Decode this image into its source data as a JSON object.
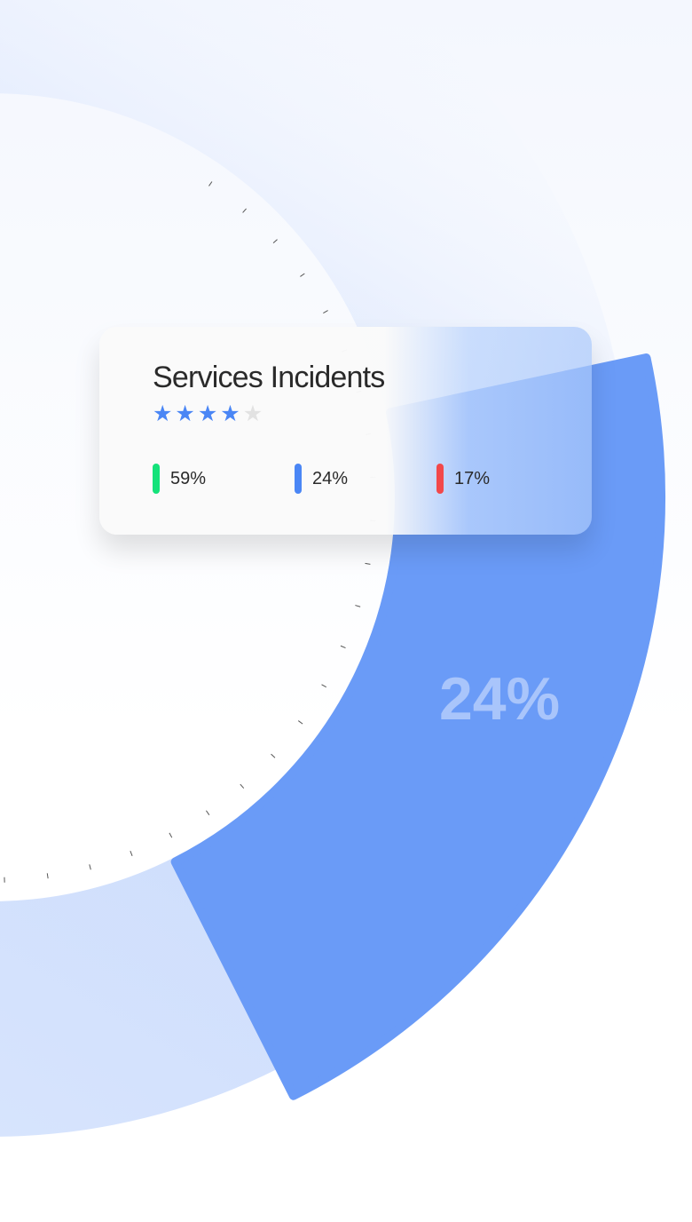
{
  "chart_data": {
    "type": "pie",
    "title": "Services Incidents",
    "values": [
      59,
      24,
      17
    ],
    "colors": [
      "#14e27a",
      "#4a86f5",
      "#f2484a"
    ],
    "highlighted_value": 24,
    "highlight_label": "24%",
    "donut": true
  },
  "card": {
    "title": "Services Incidents",
    "rating": 4,
    "rating_max": 5,
    "legend": [
      {
        "label": "59%",
        "color": "#14e27a"
      },
      {
        "label": "24%",
        "color": "#4a86f5"
      },
      {
        "label": "17%",
        "color": "#f2484a"
      }
    ]
  },
  "colors": {
    "star_on": "#4a86f5",
    "star_off": "#e2e2e2",
    "segment": "#6a9bf7",
    "ring": "#dbe6fd"
  }
}
